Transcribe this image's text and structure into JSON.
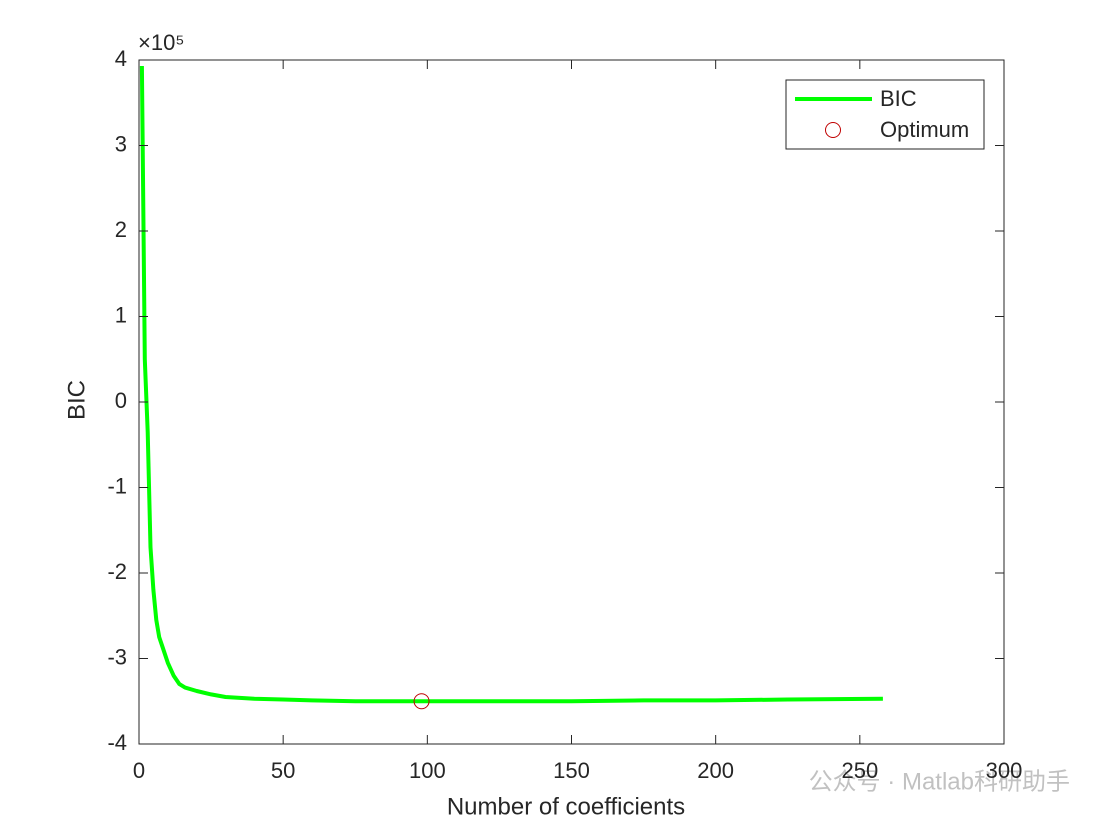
{
  "chart_data": {
    "type": "line",
    "xlabel": "Number of coefficients",
    "ylabel": "BIC",
    "y_multiplier": "×10⁵",
    "xlim": [
      0,
      300
    ],
    "xticks": [
      0,
      50,
      100,
      150,
      200,
      250,
      300
    ],
    "ylim": [
      -4,
      4
    ],
    "yticks": [
      -4,
      -3,
      -2,
      -1,
      0,
      1,
      2,
      3,
      4
    ],
    "grid": false,
    "legend": "northeast",
    "series": [
      {
        "name": "BIC",
        "color": "#00ff00",
        "marker": "none",
        "x": [
          1,
          2,
          3,
          4,
          5,
          6,
          7,
          8,
          10,
          12,
          14,
          16,
          20,
          25,
          30,
          40,
          50,
          60,
          75,
          98,
          125,
          150,
          175,
          200,
          225,
          258
        ],
        "values": [
          3.93,
          0.5,
          -0.35,
          -1.7,
          -2.2,
          -2.55,
          -2.75,
          -2.85,
          -3.05,
          -3.2,
          -3.3,
          -3.34,
          -3.38,
          -3.42,
          -3.45,
          -3.47,
          -3.48,
          -3.49,
          -3.5,
          -3.5,
          -3.5,
          -3.5,
          -3.49,
          -3.49,
          -3.48,
          -3.47
        ]
      },
      {
        "name": "Optimum",
        "color": "#c00000",
        "marker": "circle",
        "x": [
          98
        ],
        "values": [
          -3.5
        ]
      }
    ],
    "watermark": "公众号 · Matlab科研助手"
  }
}
